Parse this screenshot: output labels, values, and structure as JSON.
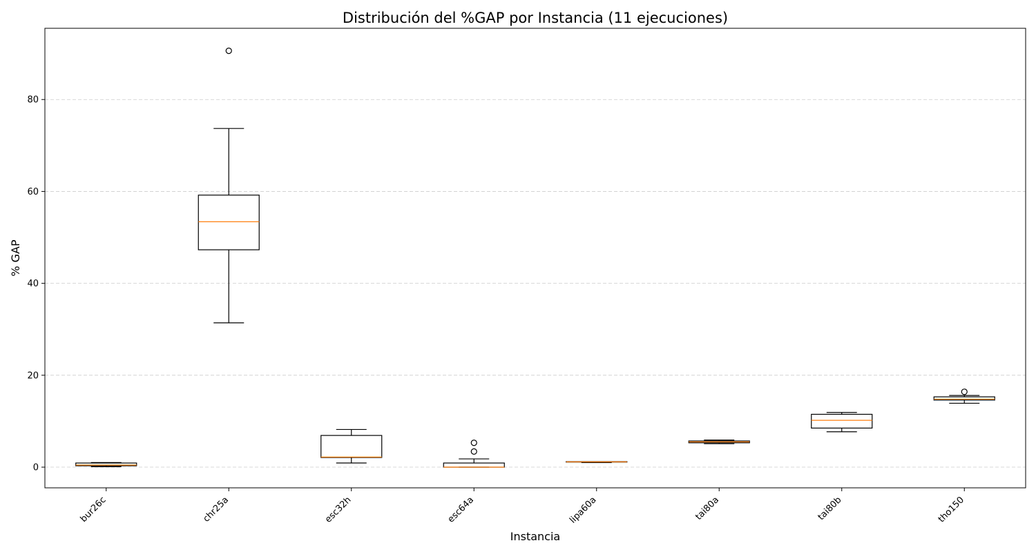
{
  "chart_data": {
    "type": "boxplot",
    "title": "Distribución del %GAP por Instancia (11 ejecuciones)",
    "xlabel": "Instancia",
    "ylabel": "% GAP",
    "ylim": [
      -4.5,
      95.5
    ],
    "yticks": [
      0,
      20,
      40,
      60,
      80
    ],
    "grid": "y-dashed",
    "categories": [
      "bur26c",
      "chr25a",
      "esc32h",
      "esc64a",
      "lipa60a",
      "tai80a",
      "tai80b",
      "tho150"
    ],
    "boxes": [
      {
        "name": "bur26c",
        "whisker_low": 0.1,
        "q1": 0.3,
        "median": 0.45,
        "q3": 0.9,
        "whisker_high": 1.0,
        "outliers": []
      },
      {
        "name": "chr25a",
        "whisker_low": 31.4,
        "q1": 47.3,
        "median": 53.4,
        "q3": 59.2,
        "whisker_high": 73.7,
        "outliers": [
          90.6
        ]
      },
      {
        "name": "esc32h",
        "whisker_low": 0.9,
        "q1": 2.1,
        "median": 2.2,
        "q3": 6.9,
        "whisker_high": 8.2,
        "outliers": []
      },
      {
        "name": "esc64a",
        "whisker_low": 0.0,
        "q1": 0.0,
        "median": 0.0,
        "q3": 0.9,
        "whisker_high": 1.8,
        "outliers": [
          3.4,
          5.3
        ]
      },
      {
        "name": "lipa60a",
        "whisker_low": 1.0,
        "q1": 1.1,
        "median": 1.15,
        "q3": 1.2,
        "whisker_high": 1.2,
        "outliers": []
      },
      {
        "name": "tai80a",
        "whisker_low": 5.1,
        "q1": 5.3,
        "median": 5.5,
        "q3": 5.7,
        "whisker_high": 5.9,
        "outliers": []
      },
      {
        "name": "tai80b",
        "whisker_low": 7.7,
        "q1": 8.5,
        "median": 10.2,
        "q3": 11.5,
        "whisker_high": 11.9,
        "outliers": []
      },
      {
        "name": "tho150",
        "whisker_low": 13.9,
        "q1": 14.6,
        "median": 14.8,
        "q3": 15.3,
        "whisker_high": 15.6,
        "outliers": [
          16.4
        ]
      }
    ],
    "colors": {
      "box": "#000000",
      "median": "#ff7f0e",
      "grid": "#cccccc"
    }
  }
}
